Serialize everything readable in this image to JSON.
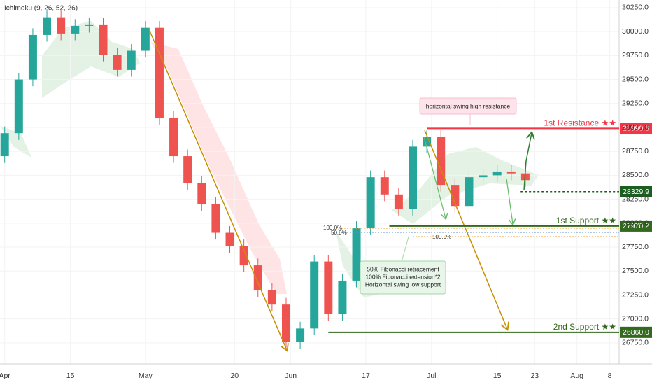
{
  "chart_data": {
    "type": "candlestick",
    "indicator": "Ichimoku (9, 26, 52, 26)",
    "x": [
      0,
      3,
      6,
      9,
      12,
      15,
      18,
      21,
      24,
      27,
      30,
      33,
      36,
      39,
      42,
      45,
      48,
      51,
      54,
      57,
      60,
      63,
      66,
      69,
      72,
      75,
      78,
      81,
      84,
      87,
      90,
      93,
      96,
      99,
      102,
      105,
      108,
      111
    ],
    "open": [
      28700,
      28940,
      29500,
      29965,
      30150,
      29980,
      30060,
      30075,
      29760,
      29600,
      29800,
      30040,
      29100,
      28700,
      28420,
      28200,
      27900,
      27760,
      27560,
      27300,
      27150,
      26760,
      26900,
      27600,
      27050,
      27400,
      27950,
      28480,
      28300,
      28150,
      28800,
      28900,
      28400,
      28180,
      28480,
      28500,
      28540,
      28520
    ],
    "high": [
      29010,
      29570,
      30035,
      30220,
      30220,
      30130,
      30145,
      30145,
      29830,
      29870,
      30110,
      30110,
      29170,
      28770,
      28490,
      28270,
      27970,
      27830,
      27630,
      27370,
      27220,
      26970,
      27670,
      27670,
      27470,
      28020,
      28550,
      28550,
      28370,
      28870,
      28970,
      28970,
      28470,
      28550,
      28570,
      28610,
      28610,
      28590
    ],
    "low": [
      28630,
      28870,
      29430,
      29895,
      29910,
      29910,
      29990,
      29690,
      29530,
      29530,
      29730,
      29030,
      28630,
      28350,
      28130,
      27830,
      27690,
      27490,
      27230,
      27080,
      26690,
      26690,
      26830,
      26980,
      26980,
      27330,
      27880,
      28230,
      28080,
      28080,
      28730,
      28330,
      28110,
      28110,
      28410,
      28430,
      28450,
      28380
    ],
    "close": [
      28940,
      29500,
      29965,
      30150,
      29980,
      30060,
      30075,
      29760,
      29600,
      29800,
      30040,
      29100,
      28700,
      28420,
      28200,
      27900,
      27760,
      27560,
      27300,
      27150,
      26760,
      26900,
      27600,
      27050,
      27400,
      27950,
      28480,
      28300,
      28150,
      28800,
      28900,
      28400,
      28180,
      28480,
      28500,
      28540,
      28520,
      28450
    ],
    "up_color": "#26a69a",
    "down_color": "#ef5350",
    "xlim": [
      -1,
      131
    ],
    "xticks": [
      {
        "value": 0,
        "label": "Apr"
      },
      {
        "value": 14,
        "label": "15"
      },
      {
        "value": 30,
        "label": "May"
      },
      {
        "value": 49,
        "label": "20"
      },
      {
        "value": 61,
        "label": "Jun"
      },
      {
        "value": 77,
        "label": "17"
      },
      {
        "value": 91,
        "label": "Jul"
      },
      {
        "value": 105,
        "label": "15"
      },
      {
        "value": 113,
        "label": "23"
      },
      {
        "value": 122,
        "label": "Aug"
      },
      {
        "value": 129,
        "label": "8"
      }
    ],
    "ylim": [
      26530,
      30330
    ],
    "yticks": [
      {
        "value": 26750,
        "label": "26750.0"
      },
      {
        "value": 27000,
        "label": "27000.0"
      },
      {
        "value": 27250,
        "label": "27250.0"
      },
      {
        "value": 27500,
        "label": "27500.0"
      },
      {
        "value": 27750,
        "label": "27750.0"
      },
      {
        "value": 28000,
        "label": "28000.0"
      },
      {
        "value": 28250,
        "label": "28250.0"
      },
      {
        "value": 28500,
        "label": "28500.0"
      },
      {
        "value": 28750,
        "label": "28750.0"
      },
      {
        "value": 29000,
        "label": "29000.0"
      },
      {
        "value": 29250,
        "label": "29250.0"
      },
      {
        "value": 29500,
        "label": "29500.0"
      },
      {
        "value": 29750,
        "label": "29750.0"
      },
      {
        "value": 30000,
        "label": "30000.0"
      },
      {
        "value": 30250,
        "label": "30250.0"
      }
    ],
    "levels": [
      {
        "name": "1st Resistance ★★",
        "value": 28990.3,
        "color": "#f23645",
        "from": 90
      },
      {
        "value": 28329.9,
        "color": "#1b5e20",
        "from": 110
      },
      {
        "name": "1st Support ★★",
        "value": 27970.2,
        "color": "#33691e",
        "from": 82
      },
      {
        "name": "2nd Support ★★",
        "value": 26860,
        "value_label": "26860.0",
        "color": "#33691e",
        "from": 69
      }
    ],
    "annotations": [
      {
        "lines": [
          "horizontal swing high resistance"
        ]
      },
      {
        "lines": [
          "50% Fibonacci retracement",
          "100% Fibonacci extension*2",
          "Horizontal swing low support"
        ]
      }
    ],
    "fib_labels": [
      "100.0%",
      "50.0%",
      "100.0%"
    ]
  }
}
